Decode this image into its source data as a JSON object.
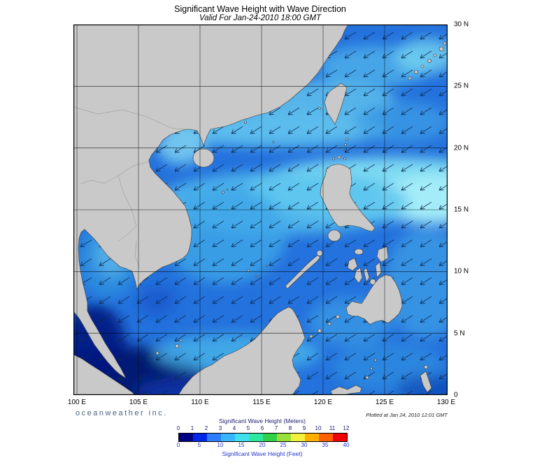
{
  "header": {
    "title": "Significant Wave Height with Wave Direction",
    "subtitle": "Valid For Jan-24-2010 18:00 GMT"
  },
  "map": {
    "x_tick_labels": [
      "100 E",
      "105 E",
      "110 E",
      "115 E",
      "120 E",
      "125 E",
      "130 E"
    ],
    "y_tick_labels": [
      "30 N",
      "25 N",
      "20 N",
      "15 N",
      "10 N",
      "5 N",
      "0"
    ],
    "land_color": "#c9c9c9",
    "ocean_base_color": "#2472dd",
    "grid_color": "#000000",
    "arrow_color": "#0a2a52"
  },
  "legend": {
    "meters_label": "Significant Wave Height (Meters)",
    "meters_ticks": [
      "0",
      "1",
      "2",
      "3",
      "4",
      "5",
      "6",
      "7",
      "8",
      "9",
      "10",
      "11",
      "12"
    ],
    "feet_label": "Significant Wave Height (Feet)",
    "feet_ticks": [
      "0",
      "5",
      "10",
      "15",
      "20",
      "25",
      "30",
      "35",
      "40"
    ],
    "colors": [
      "#000082",
      "#0026e8",
      "#2e7efc",
      "#37b6ff",
      "#40e0ee",
      "#2ee8a0",
      "#30d048",
      "#9be03a",
      "#f2f03a",
      "#ffb000",
      "#ff6000",
      "#f00000"
    ]
  },
  "footer": {
    "credit": "oceanweather inc.",
    "plotted": "Plotted at Jan 24, 2010 12:01 GMT"
  },
  "chart_data": {
    "type": "heatmap",
    "title": "Significant Wave Height with Wave Direction",
    "valid_time": "Jan-24-2010 18:00 GMT",
    "lon_ticks_deg_e": [
      100,
      105,
      110,
      115,
      120,
      125,
      130
    ],
    "lat_ticks_deg_n": [
      30,
      25,
      20,
      15,
      10,
      5,
      0
    ],
    "colorbar_meters": [
      0,
      1,
      2,
      3,
      4,
      5,
      6,
      7,
      8,
      9,
      10,
      11,
      12
    ],
    "colorbar_feet": [
      0,
      5,
      10,
      15,
      20,
      25,
      30,
      35,
      40
    ],
    "units": [
      "Meters",
      "Feet"
    ],
    "overlay": "wave direction arrows pointing generally southwest"
  }
}
